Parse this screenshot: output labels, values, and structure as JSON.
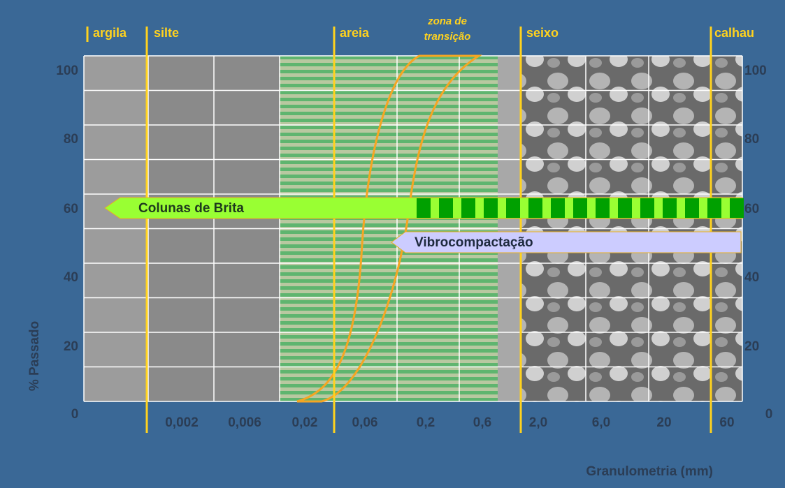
{
  "zones": [
    "argila",
    "silte",
    "areia",
    "seixo",
    "calhau"
  ],
  "transition_zone": [
    "zona de",
    "transição"
  ],
  "y_axis": {
    "title": "% Passado",
    "left_ticks": [
      "100",
      "80",
      "60",
      "40",
      "20",
      "0"
    ],
    "right_ticks": [
      "100",
      "80",
      "60",
      "40",
      "20",
      "0"
    ]
  },
  "x_axis": {
    "title": "Granulometria (mm)",
    "ticks": [
      "0,002",
      "0,006",
      "0,02",
      "0,06",
      "0,2",
      "0,6",
      "2,0",
      "6,0",
      "20",
      "60"
    ]
  },
  "arrows": {
    "stone_columns": "Colunas de Brita",
    "vibrocompaction": "Vibrocompactação"
  }
}
